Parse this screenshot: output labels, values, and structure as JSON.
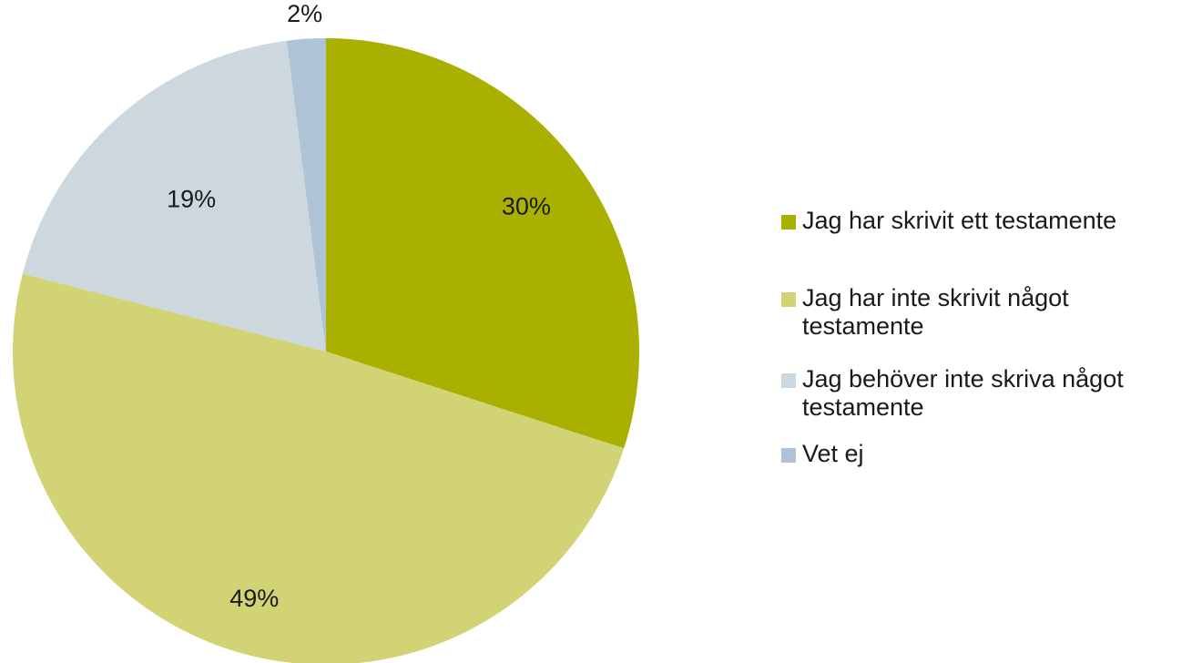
{
  "chart_data": {
    "type": "pie",
    "start_angle": "12 o'clock",
    "direction": "clockwise",
    "slices": [
      {
        "label": "Jag har skrivit ett testamente",
        "value": 30,
        "value_label": "30%",
        "color": "#a9b000"
      },
      {
        "label": "Jag har inte skrivit något testamente",
        "value": 49,
        "value_label": "49%",
        "color": "#d1d375"
      },
      {
        "label": "Jag behöver inte skriva något testamente",
        "value": 19,
        "value_label": "19%",
        "color": "#cdd7de"
      },
      {
        "label": "Vet ej",
        "value": 2,
        "value_label": "2%",
        "color": "#afc3d6"
      }
    ],
    "legend_position": "right"
  }
}
